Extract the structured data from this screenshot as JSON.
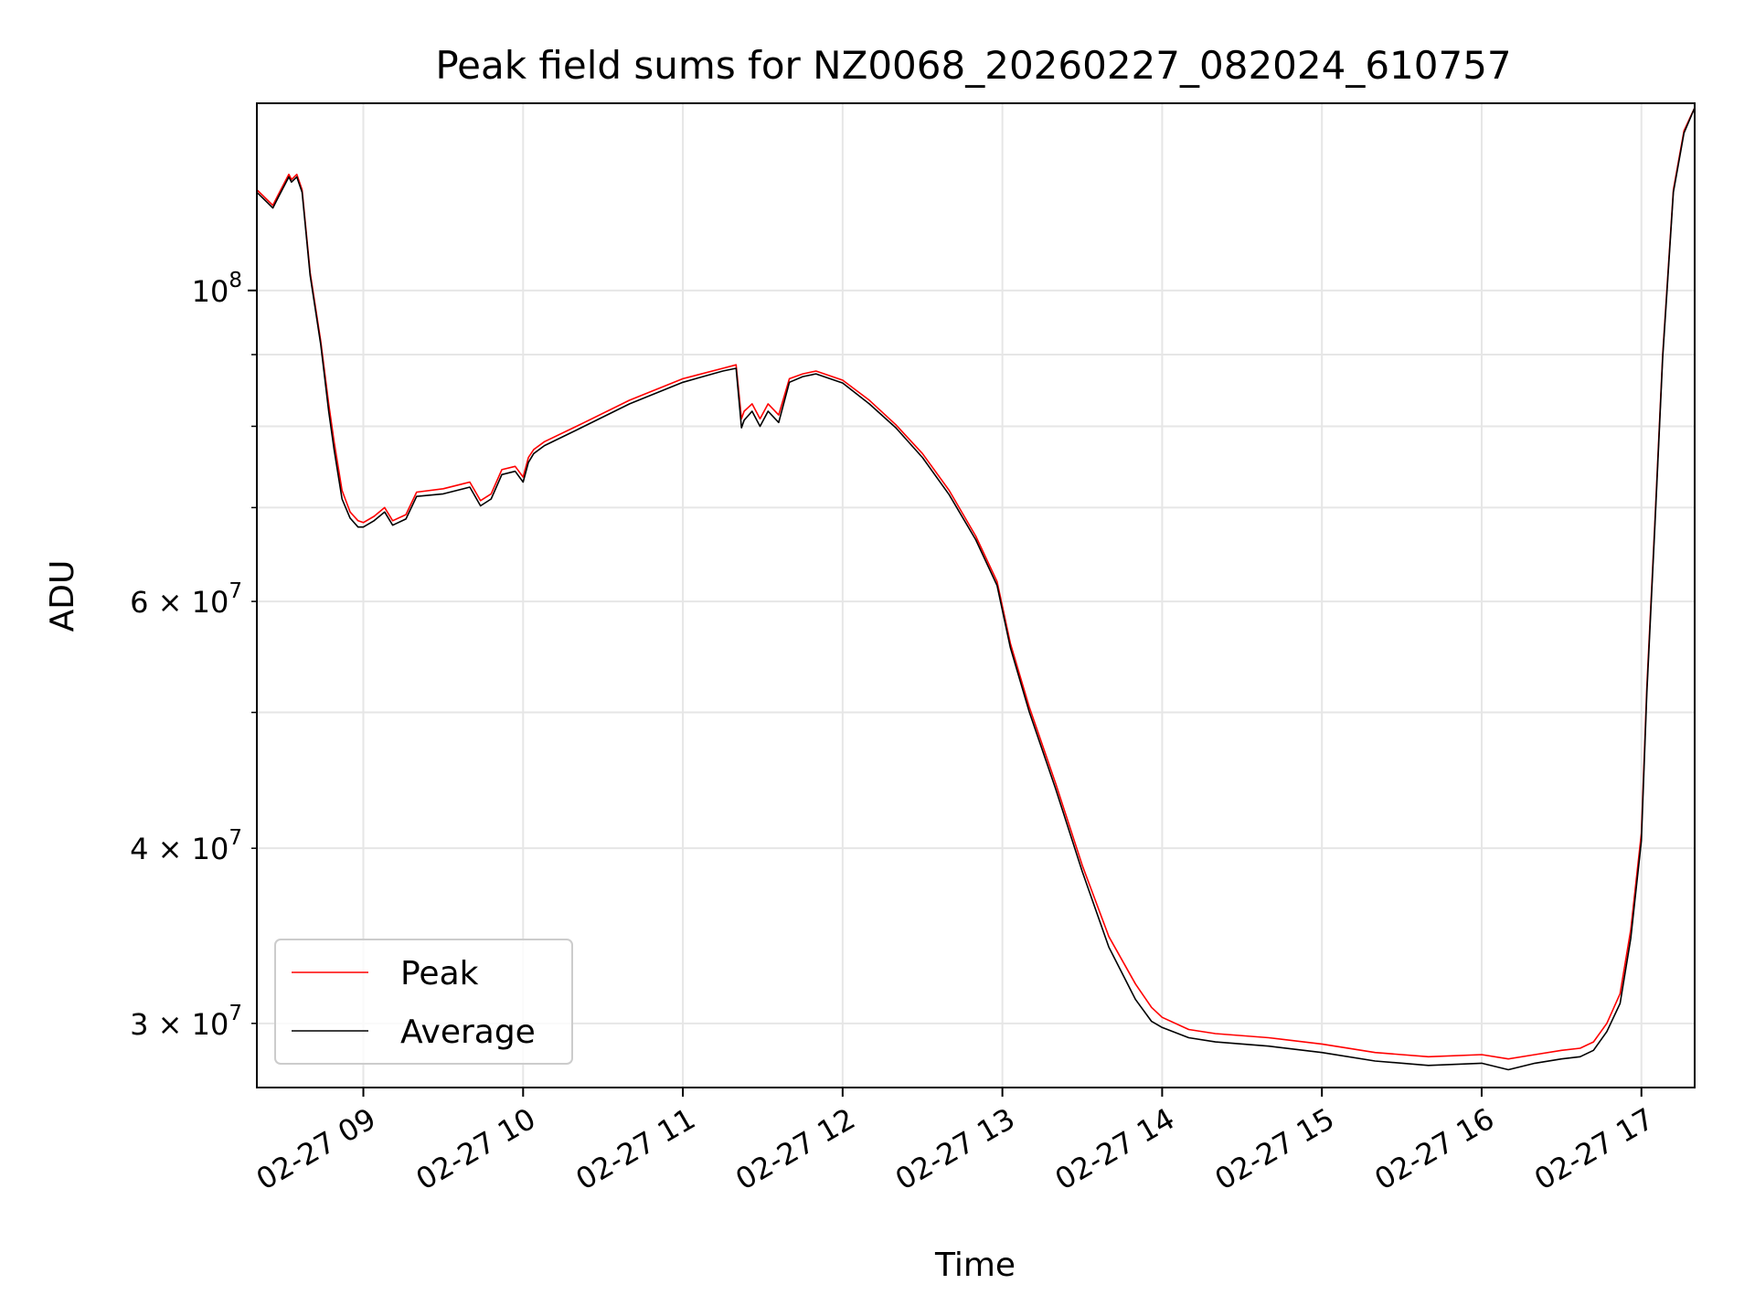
{
  "chart_data": {
    "type": "line",
    "title": "Peak field sums for NZ0068_20260227_082024_610757",
    "xlabel": "Time",
    "ylabel": "ADU",
    "y_scale": "log",
    "grid": true,
    "legend_position": "lower-left",
    "xlim": [
      "2026-02-27 08:20",
      "2026-02-27 17:20"
    ],
    "ylim": [
      27000000,
      136000000
    ],
    "x_ticks": [
      "2026-02-27 09:00",
      "2026-02-27 10:00",
      "2026-02-27 11:00",
      "2026-02-27 12:00",
      "2026-02-27 13:00",
      "2026-02-27 14:00",
      "2026-02-27 15:00",
      "2026-02-27 16:00",
      "2026-02-27 17:00"
    ],
    "x_tick_labels": [
      "02-27 09",
      "02-27 10",
      "02-27 11",
      "02-27 12",
      "02-27 13",
      "02-27 14",
      "02-27 15",
      "02-27 16",
      "02-27 17"
    ],
    "y_major_ticks": [
      {
        "value": 100000000,
        "base": "10",
        "exp": "8"
      }
    ],
    "y_minor_ticks": [
      {
        "value": 30000000,
        "base": "3 × 10",
        "exp": "7"
      },
      {
        "value": 40000000,
        "base": "4 × 10",
        "exp": "7"
      },
      {
        "value": 60000000,
        "base": "6 × 10",
        "exp": "7"
      }
    ],
    "y_unlabeled_minor": [
      50000000,
      70000000,
      80000000,
      90000000
    ],
    "series": [
      {
        "name": "Peak",
        "color": "#ff0000",
        "x": [
          "2026-02-27 08:20",
          "2026-02-27 08:24",
          "2026-02-27 08:26",
          "2026-02-27 08:28",
          "2026-02-27 08:32",
          "2026-02-27 08:33",
          "2026-02-27 08:35",
          "2026-02-27 08:37",
          "2026-02-27 08:40",
          "2026-02-27 08:44",
          "2026-02-27 08:47",
          "2026-02-27 08:49",
          "2026-02-27 08:52",
          "2026-02-27 08:55",
          "2026-02-27 08:58",
          "2026-02-27 09:00",
          "2026-02-27 09:04",
          "2026-02-27 09:08",
          "2026-02-27 09:11",
          "2026-02-27 09:16",
          "2026-02-27 09:20",
          "2026-02-27 09:30",
          "2026-02-27 09:40",
          "2026-02-27 09:44",
          "2026-02-27 09:48",
          "2026-02-27 09:52",
          "2026-02-27 09:57",
          "2026-02-27 10:00",
          "2026-02-27 10:02",
          "2026-02-27 10:04",
          "2026-02-27 10:08",
          "2026-02-27 10:20",
          "2026-02-27 10:40",
          "2026-02-27 11:00",
          "2026-02-27 11:15",
          "2026-02-27 11:20",
          "2026-02-27 11:22",
          "2026-02-27 11:23",
          "2026-02-27 11:26",
          "2026-02-27 11:29",
          "2026-02-27 11:32",
          "2026-02-27 11:36",
          "2026-02-27 11:40",
          "2026-02-27 11:45",
          "2026-02-27 11:50",
          "2026-02-27 12:00",
          "2026-02-27 12:10",
          "2026-02-27 12:20",
          "2026-02-27 12:30",
          "2026-02-27 12:40",
          "2026-02-27 12:50",
          "2026-02-27 12:58",
          "2026-02-27 13:03",
          "2026-02-27 13:10",
          "2026-02-27 13:20",
          "2026-02-27 13:30",
          "2026-02-27 13:40",
          "2026-02-27 13:50",
          "2026-02-27 13:56",
          "2026-02-27 14:00",
          "2026-02-27 14:10",
          "2026-02-27 14:20",
          "2026-02-27 14:40",
          "2026-02-27 15:00",
          "2026-02-27 15:20",
          "2026-02-27 15:40",
          "2026-02-27 16:00",
          "2026-02-27 16:10",
          "2026-02-27 16:20",
          "2026-02-27 16:30",
          "2026-02-27 16:37",
          "2026-02-27 16:42",
          "2026-02-27 16:47",
          "2026-02-27 16:52",
          "2026-02-27 16:56",
          "2026-02-27 17:00",
          "2026-02-27 17:02",
          "2026-02-27 17:05",
          "2026-02-27 17:08",
          "2026-02-27 17:12",
          "2026-02-27 17:16",
          "2026-02-27 17:20"
        ],
        "y": [
          118000000,
          116000000,
          115000000,
          117000000,
          121000000,
          120000000,
          121000000,
          118000000,
          103000000,
          92000000,
          83000000,
          78000000,
          72000000,
          69500000,
          68500000,
          68300000,
          69000000,
          70000000,
          68500000,
          69200000,
          71800000,
          72200000,
          73000000,
          70800000,
          71600000,
          74500000,
          74900000,
          73600000,
          76000000,
          77000000,
          78000000,
          80000000,
          83500000,
          86500000,
          88000000,
          88500000,
          81000000,
          82000000,
          83000000,
          81000000,
          83000000,
          81500000,
          86500000,
          87200000,
          87600000,
          86300000,
          83500000,
          80200000,
          76500000,
          72000000,
          66800000,
          62000000,
          56000000,
          50500000,
          44500000,
          38900000,
          34600000,
          32000000,
          30800000,
          30300000,
          29700000,
          29500000,
          29300000,
          29000000,
          28600000,
          28400000,
          28500000,
          28300000,
          28500000,
          28700000,
          28800000,
          29100000,
          30000000,
          31500000,
          35000000,
          41000000,
          52000000,
          68000000,
          90000000,
          118000000,
          130000000,
          135000000
        ]
      },
      {
        "name": "Average",
        "color": "#000000",
        "x": [
          "2026-02-27 08:20",
          "2026-02-27 08:24",
          "2026-02-27 08:26",
          "2026-02-27 08:28",
          "2026-02-27 08:32",
          "2026-02-27 08:33",
          "2026-02-27 08:35",
          "2026-02-27 08:37",
          "2026-02-27 08:40",
          "2026-02-27 08:44",
          "2026-02-27 08:47",
          "2026-02-27 08:49",
          "2026-02-27 08:52",
          "2026-02-27 08:55",
          "2026-02-27 08:58",
          "2026-02-27 09:00",
          "2026-02-27 09:04",
          "2026-02-27 09:08",
          "2026-02-27 09:11",
          "2026-02-27 09:16",
          "2026-02-27 09:20",
          "2026-02-27 09:30",
          "2026-02-27 09:40",
          "2026-02-27 09:44",
          "2026-02-27 09:48",
          "2026-02-27 09:52",
          "2026-02-27 09:57",
          "2026-02-27 10:00",
          "2026-02-27 10:02",
          "2026-02-27 10:04",
          "2026-02-27 10:08",
          "2026-02-27 10:20",
          "2026-02-27 10:40",
          "2026-02-27 11:00",
          "2026-02-27 11:15",
          "2026-02-27 11:20",
          "2026-02-27 11:22",
          "2026-02-27 11:23",
          "2026-02-27 11:26",
          "2026-02-27 11:29",
          "2026-02-27 11:32",
          "2026-02-27 11:36",
          "2026-02-27 11:40",
          "2026-02-27 11:45",
          "2026-02-27 11:50",
          "2026-02-27 12:00",
          "2026-02-27 12:10",
          "2026-02-27 12:20",
          "2026-02-27 12:30",
          "2026-02-27 12:40",
          "2026-02-27 12:50",
          "2026-02-27 12:58",
          "2026-02-27 13:03",
          "2026-02-27 13:10",
          "2026-02-27 13:20",
          "2026-02-27 13:30",
          "2026-02-27 13:40",
          "2026-02-27 13:50",
          "2026-02-27 13:56",
          "2026-02-27 14:00",
          "2026-02-27 14:10",
          "2026-02-27 14:20",
          "2026-02-27 14:40",
          "2026-02-27 15:00",
          "2026-02-27 15:20",
          "2026-02-27 15:40",
          "2026-02-27 16:00",
          "2026-02-27 16:10",
          "2026-02-27 16:20",
          "2026-02-27 16:30",
          "2026-02-27 16:37",
          "2026-02-27 16:42",
          "2026-02-27 16:47",
          "2026-02-27 16:52",
          "2026-02-27 16:56",
          "2026-02-27 17:00",
          "2026-02-27 17:02",
          "2026-02-27 17:05",
          "2026-02-27 17:08",
          "2026-02-27 17:12",
          "2026-02-27 17:16",
          "2026-02-27 17:20"
        ],
        "y": [
          117500000,
          115500000,
          114500000,
          116500000,
          120500000,
          119500000,
          120500000,
          117500000,
          102500000,
          91500000,
          82000000,
          77000000,
          71000000,
          68800000,
          67800000,
          67800000,
          68500000,
          69500000,
          68000000,
          68700000,
          71300000,
          71600000,
          72400000,
          70200000,
          71000000,
          73900000,
          74300000,
          73000000,
          75400000,
          76500000,
          77500000,
          79500000,
          83000000,
          86000000,
          87600000,
          88000000,
          79800000,
          80800000,
          82000000,
          80000000,
          82000000,
          80500000,
          86000000,
          86800000,
          87200000,
          85900000,
          83000000,
          79800000,
          76000000,
          71500000,
          66400000,
          61600000,
          55600000,
          50100000,
          44100000,
          38500000,
          34000000,
          31200000,
          30100000,
          29800000,
          29300000,
          29100000,
          28900000,
          28600000,
          28200000,
          28000000,
          28100000,
          27800000,
          28100000,
          28300000,
          28400000,
          28700000,
          29600000,
          31000000,
          34500000,
          40500000,
          51500000,
          67500000,
          89500000,
          117500000,
          129500000,
          135000000
        ]
      }
    ]
  }
}
